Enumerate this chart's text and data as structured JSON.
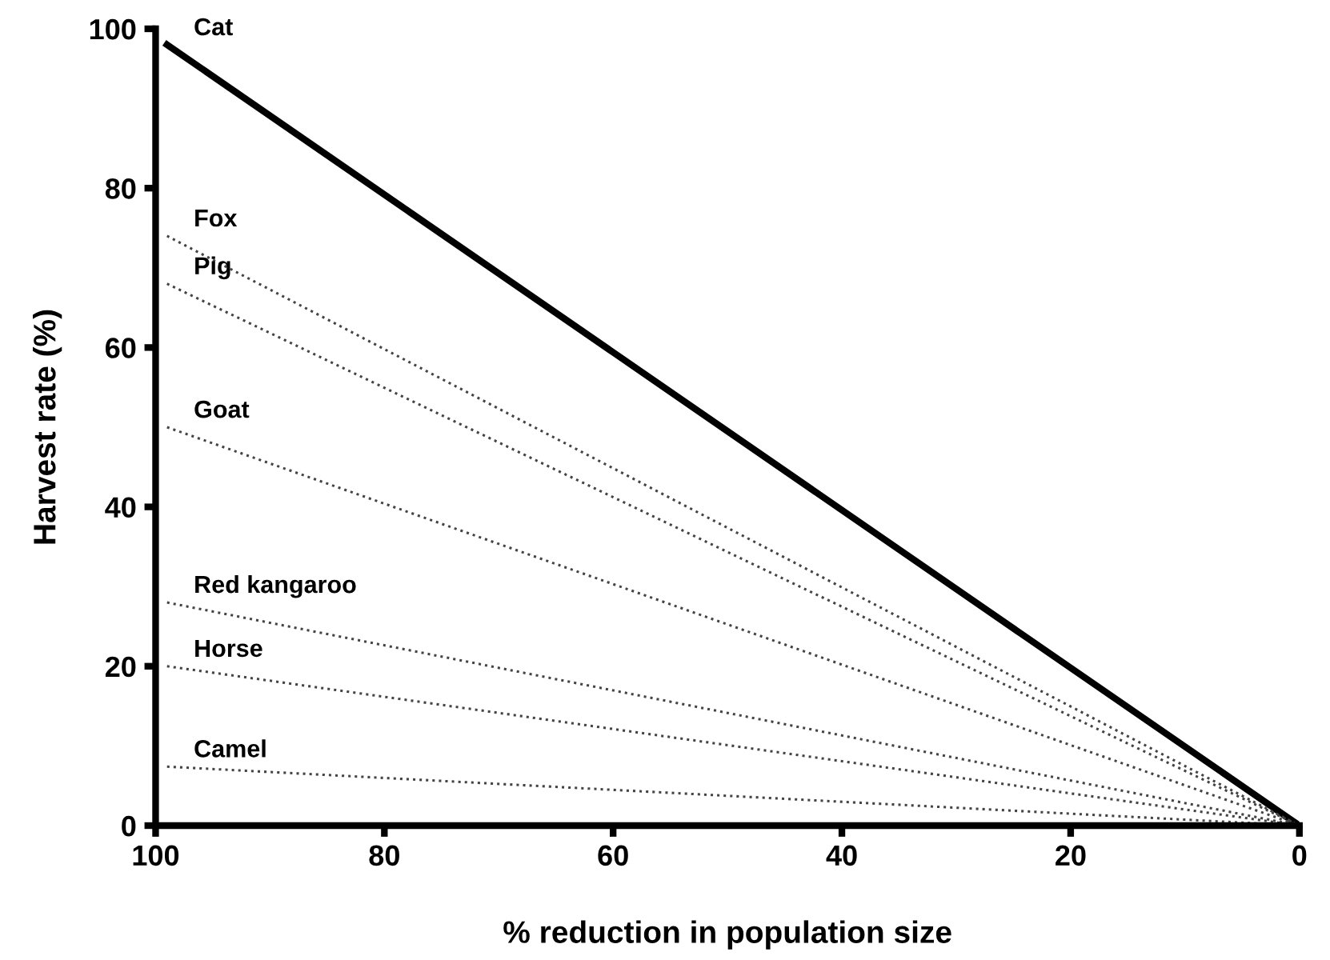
{
  "chart_data": {
    "type": "line",
    "xlabel": "% reduction in population size",
    "ylabel": "Harvest rate (%)",
    "xlim": [
      100,
      0
    ],
    "ylim": [
      0,
      100
    ],
    "xticks": [
      100,
      80,
      60,
      40,
      20,
      0
    ],
    "yticks": [
      0,
      20,
      40,
      60,
      80,
      100
    ],
    "grid": false,
    "legend": false,
    "marker": "none",
    "x": [
      99,
      0
    ],
    "series": [
      {
        "name": "Cat",
        "color": "#000000",
        "line_style": "solid",
        "values": [
          98,
          0
        ]
      },
      {
        "name": "Fox",
        "color": "#444444",
        "line_style": "dotted",
        "values": [
          74,
          0
        ]
      },
      {
        "name": "Pig",
        "color": "#444444",
        "line_style": "dotted",
        "values": [
          68,
          0
        ]
      },
      {
        "name": "Goat",
        "color": "#444444",
        "line_style": "dotted",
        "values": [
          50,
          0
        ]
      },
      {
        "name": "Red kangaroo",
        "color": "#444444",
        "line_style": "dotted",
        "values": [
          28,
          0
        ]
      },
      {
        "name": "Horse",
        "color": "#444444",
        "line_style": "dotted",
        "values": [
          20,
          0
        ]
      },
      {
        "name": "Camel",
        "color": "#444444",
        "line_style": "dotted",
        "values": [
          7.4,
          0
        ]
      }
    ]
  }
}
